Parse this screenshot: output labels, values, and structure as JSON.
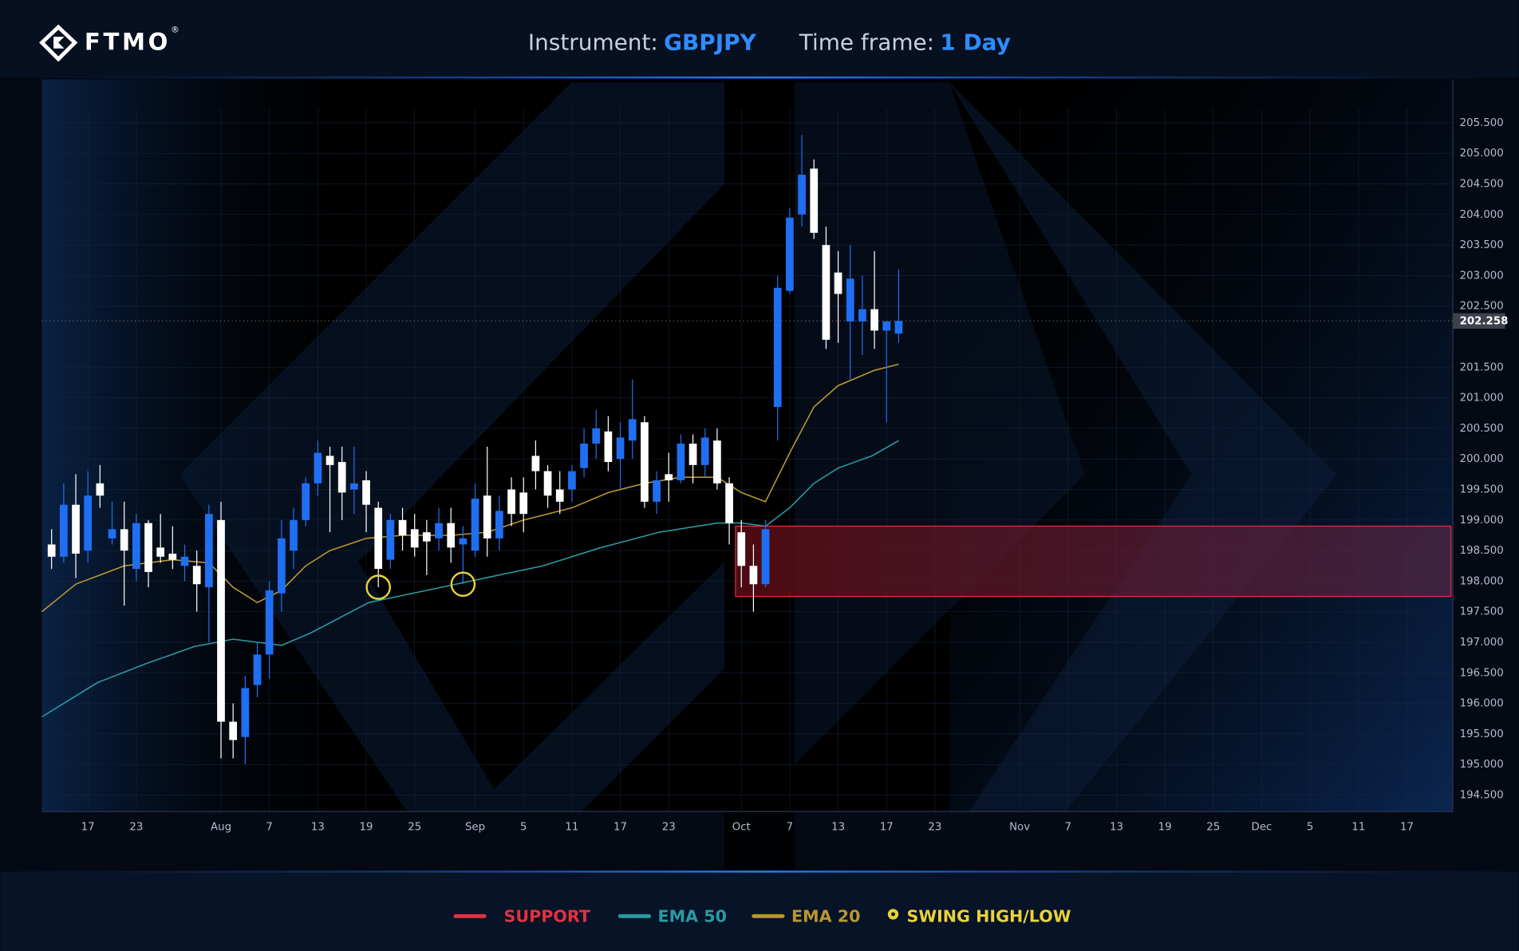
{
  "chart_data": {
    "type": "candlestick",
    "logo": "FTMO",
    "logo_mark": "®",
    "instrument_label": "Instrument:",
    "instrument": "GBPJPY",
    "timeframe_label": "Time frame:",
    "timeframe": "1 Day",
    "up_color": "#1f6ff2",
    "down_color": "#ffffff",
    "x": [
      0,
      1,
      2,
      3,
      4,
      5,
      6,
      7,
      8,
      9,
      10,
      11,
      12,
      13,
      14,
      15,
      16,
      17,
      18,
      19,
      20,
      21,
      22,
      23,
      24,
      25,
      26,
      27,
      28,
      29,
      30,
      31,
      32,
      33,
      34,
      35,
      36,
      37,
      38,
      39,
      40,
      41,
      42,
      43,
      44,
      45,
      46,
      47,
      48,
      49,
      50,
      51,
      52,
      53,
      54,
      55,
      56,
      57,
      58,
      59,
      60,
      61,
      62,
      63,
      64,
      65,
      66,
      67,
      68,
      69,
      70
    ],
    "open": [
      198.6,
      198.4,
      199.25,
      198.5,
      199.6,
      198.7,
      198.85,
      198.2,
      198.95,
      198.55,
      198.45,
      198.25,
      198.25,
      197.9,
      199.0,
      195.7,
      195.45,
      196.3,
      196.8,
      197.8,
      198.5,
      199.0,
      199.6,
      200.05,
      199.95,
      199.5,
      199.65,
      199.2,
      198.35,
      199.0,
      198.85,
      198.8,
      198.7,
      198.95,
      198.6,
      198.5,
      199.4,
      198.7,
      199.5,
      199.45,
      200.05,
      199.8,
      199.5,
      199.5,
      199.85,
      200.25,
      200.45,
      200.0,
      200.3,
      200.6,
      199.3,
      199.75,
      199.65,
      200.25,
      199.9,
      200.3,
      199.6,
      198.8,
      198.25,
      197.95,
      200.85,
      202.75,
      204.0,
      204.75,
      203.5,
      203.05,
      202.25,
      202.25,
      202.45,
      202.1,
      202.05
    ],
    "high": [
      198.85,
      199.6,
      199.75,
      199.8,
      199.9,
      199.3,
      199.3,
      199.1,
      199.0,
      199.1,
      198.9,
      198.6,
      198.5,
      199.25,
      199.3,
      196.0,
      196.45,
      197.0,
      198.0,
      199.0,
      199.2,
      199.7,
      200.3,
      200.2,
      200.2,
      200.2,
      199.8,
      199.3,
      199.1,
      199.2,
      199.1,
      199.0,
      199.2,
      199.2,
      198.9,
      199.6,
      200.2,
      199.4,
      199.7,
      199.7,
      200.3,
      199.9,
      199.8,
      199.9,
      200.5,
      200.8,
      200.7,
      200.6,
      201.3,
      200.7,
      199.8,
      200.1,
      200.4,
      200.4,
      200.5,
      200.5,
      199.7,
      199.0,
      198.6,
      199.0,
      203.0,
      204.1,
      205.3,
      204.9,
      203.8,
      203.4,
      203.5,
      203.0,
      203.4,
      202.25,
      203.1
    ],
    "low": [
      198.2,
      198.3,
      198.05,
      198.3,
      199.2,
      198.6,
      197.6,
      198.0,
      197.9,
      198.3,
      198.2,
      198.0,
      197.5,
      197.0,
      195.1,
      195.1,
      195.0,
      196.1,
      196.4,
      197.5,
      198.2,
      198.9,
      199.4,
      198.8,
      199.0,
      199.1,
      198.8,
      197.9,
      198.2,
      198.5,
      198.4,
      198.1,
      198.5,
      198.3,
      197.95,
      198.4,
      198.4,
      198.5,
      198.9,
      198.8,
      199.5,
      199.2,
      199.1,
      199.3,
      199.7,
      200.0,
      199.8,
      199.5,
      200.0,
      199.2,
      199.1,
      199.3,
      199.6,
      199.6,
      199.7,
      199.5,
      198.6,
      197.9,
      197.5,
      197.9,
      200.3,
      202.7,
      203.8,
      203.6,
      201.8,
      201.9,
      201.3,
      201.7,
      201.8,
      200.6,
      201.9
    ],
    "close": [
      198.4,
      199.25,
      198.45,
      199.4,
      199.4,
      198.85,
      198.5,
      198.95,
      198.15,
      198.4,
      198.35,
      198.4,
      197.95,
      199.1,
      195.7,
      195.4,
      196.25,
      196.8,
      197.85,
      198.7,
      199.0,
      199.6,
      200.1,
      199.9,
      199.45,
      199.6,
      199.25,
      198.2,
      199.0,
      198.75,
      198.55,
      198.65,
      198.95,
      198.55,
      198.7,
      199.35,
      198.7,
      199.15,
      199.1,
      199.1,
      199.8,
      199.4,
      199.3,
      199.8,
      200.25,
      200.5,
      199.95,
      200.35,
      200.65,
      199.3,
      199.65,
      199.65,
      200.25,
      199.9,
      200.35,
      199.6,
      198.95,
      198.25,
      197.95,
      198.85,
      202.8,
      203.95,
      204.65,
      203.7,
      201.95,
      202.7,
      202.95,
      202.45,
      202.1,
      202.25,
      202.258
    ],
    "series": [
      {
        "name": "EMA 50",
        "color": "#2a9aa3",
        "x": [
          -0.8,
          3.8,
          7.8,
          11.8,
          15,
          17,
          19,
          21.4,
          26.2,
          31,
          35.8,
          40.6,
          45.4,
          50.2,
          55,
          57,
          59,
          61,
          63,
          65,
          67.8,
          70
        ],
        "values": [
          195.78,
          196.34,
          196.65,
          196.93,
          197.05,
          197.0,
          196.95,
          197.15,
          197.65,
          197.85,
          198.05,
          198.25,
          198.55,
          198.8,
          198.95,
          198.95,
          198.9,
          199.2,
          199.6,
          199.85,
          200.05,
          200.3
        ]
      },
      {
        "name": "EMA 20",
        "color": "#b9972f",
        "x": [
          -0.8,
          2,
          6,
          10,
          13,
          15,
          17,
          19,
          21,
          23,
          26,
          29,
          33,
          36,
          39,
          43,
          46,
          49,
          52,
          55,
          57,
          59,
          61,
          63,
          65,
          68,
          70
        ],
        "values": [
          197.5,
          197.95,
          198.25,
          198.35,
          198.3,
          197.9,
          197.65,
          197.85,
          198.25,
          198.5,
          198.7,
          198.75,
          198.75,
          198.8,
          199.0,
          199.2,
          199.45,
          199.6,
          199.7,
          199.7,
          199.45,
          199.3,
          200.1,
          200.85,
          201.2,
          201.45,
          201.55
        ]
      }
    ],
    "support": {
      "name": "SUPPORT",
      "color": "#e4303f",
      "x_start": 57,
      "low": 197.75,
      "high": 198.9
    },
    "swings": {
      "name": "SWING HIGH/LOW",
      "color": "#e8d23a",
      "x": [
        27,
        34
      ],
      "values": [
        197.9,
        197.95
      ]
    },
    "current_price": 202.258,
    "xlim": [
      -0.8,
      115.8
    ],
    "xticks": [
      {
        "value": 3,
        "label": "17"
      },
      {
        "value": 7,
        "label": "23"
      },
      {
        "value": 14,
        "label": "Aug"
      },
      {
        "value": 18,
        "label": "7"
      },
      {
        "value": 22,
        "label": "13"
      },
      {
        "value": 26,
        "label": "19"
      },
      {
        "value": 30,
        "label": "25"
      },
      {
        "value": 35,
        "label": "Sep"
      },
      {
        "value": 39,
        "label": "5"
      },
      {
        "value": 43,
        "label": "11"
      },
      {
        "value": 47,
        "label": "17"
      },
      {
        "value": 51,
        "label": "23"
      },
      {
        "value": 57,
        "label": "Oct"
      },
      {
        "value": 61,
        "label": "7"
      },
      {
        "value": 65,
        "label": "13"
      },
      {
        "value": 69,
        "label": "17"
      },
      {
        "value": 73,
        "label": "23"
      },
      {
        "value": 80,
        "label": "Nov"
      },
      {
        "value": 84,
        "label": "7"
      },
      {
        "value": 88,
        "label": "13"
      },
      {
        "value": 92,
        "label": "19"
      },
      {
        "value": 96,
        "label": "25"
      },
      {
        "value": 100,
        "label": "Dec"
      },
      {
        "value": 104,
        "label": "5"
      },
      {
        "value": 108,
        "label": "11"
      },
      {
        "value": 112,
        "label": "17"
      }
    ],
    "ylim": [
      194.23,
      206.21
    ],
    "yticks": [
      {
        "value": 194.5,
        "label": "194.500"
      },
      {
        "value": 195,
        "label": "195.000"
      },
      {
        "value": 195.5,
        "label": "195.500"
      },
      {
        "value": 196,
        "label": "196.000"
      },
      {
        "value": 196.5,
        "label": "196.500"
      },
      {
        "value": 197,
        "label": "197.000"
      },
      {
        "value": 197.5,
        "label": "197.500"
      },
      {
        "value": 198,
        "label": "198.000"
      },
      {
        "value": 198.5,
        "label": "198.500"
      },
      {
        "value": 199,
        "label": "199.000"
      },
      {
        "value": 199.5,
        "label": "199.500"
      },
      {
        "value": 200,
        "label": "200.000"
      },
      {
        "value": 200.5,
        "label": "200.500"
      },
      {
        "value": 201,
        "label": "201.000"
      },
      {
        "value": 201.5,
        "label": "201.500"
      },
      {
        "value": 202.5,
        "label": "202.500"
      },
      {
        "value": 203,
        "label": "203.000"
      },
      {
        "value": 203.5,
        "label": "203.500"
      },
      {
        "value": 204,
        "label": "204.000"
      },
      {
        "value": 204.5,
        "label": "204.500"
      },
      {
        "value": 205,
        "label": "205.000"
      },
      {
        "value": 205.5,
        "label": "205.500"
      }
    ],
    "grid": true
  }
}
